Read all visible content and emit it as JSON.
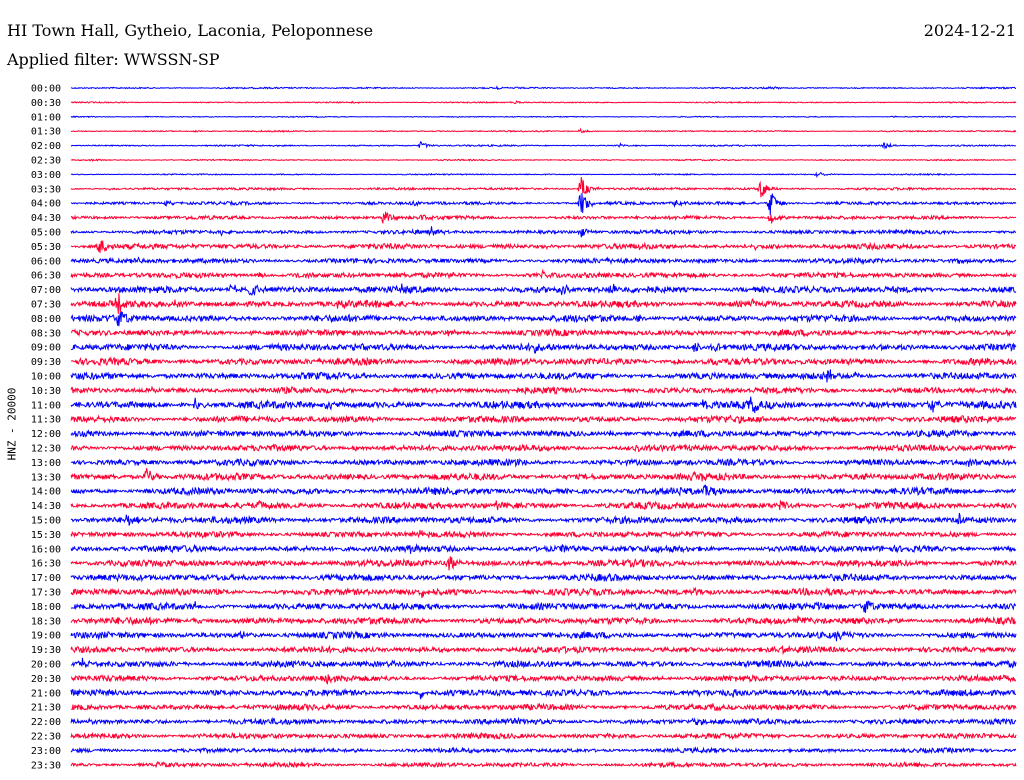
{
  "header": {
    "station": "HI Town Hall, Gytheio, Laconia, Peloponnese",
    "date": "2024-12-21",
    "filter": "Applied filter: WWSSN-SP",
    "channel": "HNZ - 20000"
  },
  "colors": {
    "trace_a": "#0000ff",
    "trace_b": "#ff0033"
  },
  "chart_data": {
    "type": "line",
    "title": "HI Town Hall, Gytheio, Laconia, Peloponnese",
    "ylabel": "HNZ - 20000",
    "xlabel": "",
    "traces": [
      {
        "label": "00:00",
        "noise": 0.6,
        "events": [
          [
            0.16,
            0.8
          ],
          [
            0.45,
            1.0
          ],
          [
            0.74,
            1.2
          ]
        ]
      },
      {
        "label": "00:30",
        "noise": 0.5,
        "events": [
          [
            0.3,
            0.8
          ],
          [
            0.47,
            1.6
          ]
        ]
      },
      {
        "label": "01:00",
        "noise": 0.4,
        "events": [
          [
            0.08,
            0.8
          ],
          [
            0.87,
            0.8
          ]
        ]
      },
      {
        "label": "01:30",
        "noise": 0.5,
        "events": [
          [
            0.13,
            1.0
          ],
          [
            0.54,
            2.5
          ]
        ]
      },
      {
        "label": "02:00",
        "noise": 0.6,
        "events": [
          [
            0.37,
            4.0
          ],
          [
            0.58,
            2.0
          ],
          [
            0.86,
            3.5
          ]
        ]
      },
      {
        "label": "02:30",
        "noise": 0.5,
        "events": [
          [
            0.02,
            1.5
          ]
        ]
      },
      {
        "label": "03:00",
        "noise": 0.5,
        "events": [
          [
            0.79,
            3.0
          ]
        ]
      },
      {
        "label": "03:30",
        "noise": 1.0,
        "events": [
          [
            0.04,
            1.2
          ],
          [
            0.54,
            12.0
          ],
          [
            0.73,
            10.0
          ]
        ]
      },
      {
        "label": "04:00",
        "noise": 1.3,
        "events": [
          [
            0.1,
            2.5
          ],
          [
            0.36,
            3.0
          ],
          [
            0.54,
            14.0
          ],
          [
            0.64,
            3.5
          ],
          [
            0.74,
            14.0
          ]
        ]
      },
      {
        "label": "04:30",
        "noise": 1.5,
        "events": [
          [
            0.33,
            8.5
          ],
          [
            0.37,
            3.0
          ],
          [
            0.74,
            7.0
          ]
        ]
      },
      {
        "label": "05:00",
        "noise": 1.6,
        "events": [
          [
            0.16,
            2.5
          ],
          [
            0.38,
            5.0
          ],
          [
            0.54,
            6.0
          ],
          [
            0.92,
            2.0
          ]
        ]
      },
      {
        "label": "05:30",
        "noise": 2.2,
        "events": [
          [
            0.03,
            9.0
          ],
          [
            0.5,
            2.0
          ],
          [
            0.72,
            3.0
          ]
        ]
      },
      {
        "label": "06:00",
        "noise": 2.0,
        "events": [
          [
            0.07,
            3.0
          ],
          [
            0.94,
            2.0
          ]
        ]
      },
      {
        "label": "06:30",
        "noise": 2.2,
        "events": [
          [
            0.2,
            3.0
          ],
          [
            0.24,
            3.5
          ],
          [
            0.4,
            2.5
          ],
          [
            0.5,
            3.5
          ]
        ]
      },
      {
        "label": "07:00",
        "noise": 2.8,
        "events": [
          [
            0.17,
            6.0
          ],
          [
            0.19,
            8.0
          ],
          [
            0.35,
            3.5
          ],
          [
            0.52,
            5.5
          ],
          [
            0.57,
            6.0
          ]
        ]
      },
      {
        "label": "07:30",
        "noise": 2.8,
        "events": [
          [
            0.05,
            9.0
          ],
          [
            0.11,
            3.5
          ],
          [
            0.28,
            4.5
          ],
          [
            0.72,
            5.0
          ]
        ]
      },
      {
        "label": "08:00",
        "noise": 2.8,
        "events": [
          [
            0.05,
            11.0
          ],
          [
            0.6,
            3.0
          ]
        ]
      },
      {
        "label": "08:30",
        "noise": 2.5,
        "events": [
          [
            0.19,
            3.0
          ],
          [
            0.4,
            2.5
          ]
        ]
      },
      {
        "label": "09:00",
        "noise": 2.8,
        "events": [
          [
            0.3,
            2.5
          ],
          [
            0.49,
            3.5
          ],
          [
            0.66,
            6.0
          ],
          [
            0.68,
            5.0
          ],
          [
            0.85,
            3.0
          ]
        ]
      },
      {
        "label": "09:30",
        "noise": 2.8,
        "events": [
          [
            0.64,
            3.0
          ],
          [
            0.68,
            3.5
          ]
        ]
      },
      {
        "label": "10:00",
        "noise": 2.8,
        "events": [
          [
            0.8,
            7.0
          ],
          [
            0.83,
            4.0
          ]
        ]
      },
      {
        "label": "10:30",
        "noise": 2.5,
        "events": [
          [
            0.08,
            3.0
          ]
        ]
      },
      {
        "label": "11:00",
        "noise": 3.0,
        "events": [
          [
            0.13,
            7.5
          ],
          [
            0.27,
            6.0
          ],
          [
            0.67,
            7.5
          ],
          [
            0.72,
            7.5
          ],
          [
            0.91,
            7.5
          ]
        ]
      },
      {
        "label": "11:30",
        "noise": 2.7,
        "events": [
          [
            0.7,
            3.0
          ]
        ]
      },
      {
        "label": "12:00",
        "noise": 2.6,
        "events": [
          [
            0.57,
            3.0
          ]
        ]
      },
      {
        "label": "12:30",
        "noise": 2.6,
        "events": [
          [
            0.3,
            2.5
          ],
          [
            0.6,
            4.0
          ]
        ]
      },
      {
        "label": "13:00",
        "noise": 2.6,
        "events": [
          [
            0.47,
            2.5
          ],
          [
            0.64,
            3.5
          ],
          [
            0.95,
            2.5
          ]
        ]
      },
      {
        "label": "13:30",
        "noise": 2.8,
        "events": [
          [
            0.08,
            10.0
          ],
          [
            0.66,
            4.5
          ],
          [
            0.84,
            4.5
          ]
        ]
      },
      {
        "label": "14:00",
        "noise": 2.8,
        "events": [
          [
            0.4,
            4.0
          ],
          [
            0.64,
            6.0
          ],
          [
            0.67,
            11.0
          ]
        ]
      },
      {
        "label": "14:30",
        "noise": 2.8,
        "events": [
          [
            0.2,
            3.5
          ],
          [
            0.45,
            3.0
          ],
          [
            0.75,
            4.0
          ]
        ]
      },
      {
        "label": "15:00",
        "noise": 2.8,
        "events": [
          [
            0.06,
            6.5
          ],
          [
            0.25,
            3.0
          ],
          [
            0.94,
            7.0
          ]
        ]
      },
      {
        "label": "15:30",
        "noise": 2.5,
        "events": [
          [
            0.37,
            3.0
          ]
        ]
      },
      {
        "label": "16:00",
        "noise": 2.7,
        "events": [
          [
            0.36,
            4.0
          ],
          [
            0.52,
            5.0
          ]
        ]
      },
      {
        "label": "16:30",
        "noise": 2.8,
        "events": [
          [
            0.4,
            9.0
          ],
          [
            0.1,
            3.0
          ]
        ]
      },
      {
        "label": "17:00",
        "noise": 2.7,
        "events": [
          [
            0.55,
            3.0
          ]
        ]
      },
      {
        "label": "17:30",
        "noise": 2.8,
        "events": [
          [
            0.37,
            4.5
          ],
          [
            0.66,
            3.0
          ]
        ]
      },
      {
        "label": "18:00",
        "noise": 2.8,
        "events": [
          [
            0.13,
            3.5
          ],
          [
            0.84,
            9.0
          ],
          [
            0.79,
            3.0
          ]
        ]
      },
      {
        "label": "18:30",
        "noise": 2.8,
        "events": [
          [
            0.13,
            3.5
          ],
          [
            0.77,
            4.0
          ]
        ]
      },
      {
        "label": "19:00",
        "noise": 2.6,
        "events": [
          [
            0.18,
            3.0
          ],
          [
            0.81,
            4.0
          ]
        ]
      },
      {
        "label": "19:30",
        "noise": 2.5,
        "events": [
          [
            0.75,
            3.0
          ]
        ]
      },
      {
        "label": "20:00",
        "noise": 2.6,
        "events": [
          [
            0.01,
            6.0
          ],
          [
            0.34,
            3.0
          ]
        ]
      },
      {
        "label": "20:30",
        "noise": 2.5,
        "events": [
          [
            0.27,
            4.5
          ],
          [
            0.62,
            3.0
          ]
        ]
      },
      {
        "label": "21:00",
        "noise": 2.6,
        "events": [
          [
            0.37,
            5.5
          ],
          [
            0.7,
            4.0
          ]
        ]
      },
      {
        "label": "21:30",
        "noise": 2.4,
        "events": [
          [
            0.68,
            3.0
          ]
        ]
      },
      {
        "label": "22:00",
        "noise": 2.3,
        "events": [
          [
            0.02,
            3.0
          ],
          [
            0.66,
            4.5
          ]
        ]
      },
      {
        "label": "22:30",
        "noise": 2.2,
        "events": [
          [
            0.14,
            3.0
          ],
          [
            0.57,
            2.5
          ]
        ]
      },
      {
        "label": "23:00",
        "noise": 1.8,
        "events": [
          [
            0.3,
            2.0
          ]
        ]
      },
      {
        "label": "23:30",
        "noise": 1.8,
        "events": [
          [
            0.09,
            3.5
          ]
        ]
      }
    ]
  }
}
